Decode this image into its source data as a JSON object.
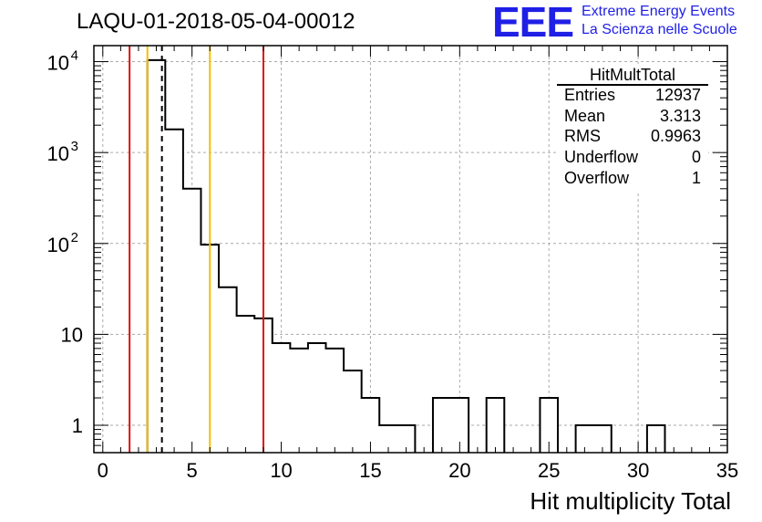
{
  "title": "LAQU-01-2018-05-04-00012",
  "logo": {
    "mark": "EEE",
    "line1": "Extreme Energy Events",
    "line2": "La Scienza nelle Scuole",
    "color": "#1f1fe6"
  },
  "chart_data": {
    "type": "histogram",
    "title": "LAQU-01-2018-05-04-00012",
    "xlabel": "Hit multiplicity Total",
    "ylabel": "",
    "xlim": [
      -0.5,
      35
    ],
    "ylim": [
      0.5,
      15000
    ],
    "yscale": "log",
    "grid": true,
    "x_ticks": [
      "0",
      "5",
      "10",
      "15",
      "20",
      "25",
      "30",
      "35"
    ],
    "y_ticks": [
      {
        "value": 1,
        "base": "1",
        "exp": ""
      },
      {
        "value": 10,
        "base": "10",
        "exp": ""
      },
      {
        "value": 100,
        "base": "10",
        "exp": "2"
      },
      {
        "value": 1000,
        "base": "10",
        "exp": "3"
      },
      {
        "value": 10000,
        "base": "10",
        "exp": "4"
      }
    ],
    "bin_width": 1,
    "bins": [
      {
        "lo": 2.5,
        "hi": 3.5,
        "count": 10400
      },
      {
        "lo": 3.5,
        "hi": 4.5,
        "count": 1800
      },
      {
        "lo": 4.5,
        "hi": 5.5,
        "count": 400
      },
      {
        "lo": 5.5,
        "hi": 6.5,
        "count": 97
      },
      {
        "lo": 6.5,
        "hi": 7.5,
        "count": 33
      },
      {
        "lo": 7.5,
        "hi": 8.5,
        "count": 16
      },
      {
        "lo": 8.5,
        "hi": 9.5,
        "count": 15
      },
      {
        "lo": 9.5,
        "hi": 10.5,
        "count": 8
      },
      {
        "lo": 10.5,
        "hi": 11.5,
        "count": 7
      },
      {
        "lo": 11.5,
        "hi": 12.5,
        "count": 8
      },
      {
        "lo": 12.5,
        "hi": 13.5,
        "count": 7
      },
      {
        "lo": 13.5,
        "hi": 14.5,
        "count": 4
      },
      {
        "lo": 14.5,
        "hi": 15.5,
        "count": 2
      },
      {
        "lo": 15.5,
        "hi": 16.5,
        "count": 1
      },
      {
        "lo": 16.5,
        "hi": 17.5,
        "count": 1
      },
      {
        "lo": 18.5,
        "hi": 19.5,
        "count": 2
      },
      {
        "lo": 19.5,
        "hi": 20.5,
        "count": 2
      },
      {
        "lo": 21.5,
        "hi": 22.5,
        "count": 2
      },
      {
        "lo": 24.5,
        "hi": 25.5,
        "count": 2
      },
      {
        "lo": 26.5,
        "hi": 27.5,
        "count": 1
      },
      {
        "lo": 27.5,
        "hi": 28.5,
        "count": 1
      },
      {
        "lo": 30.5,
        "hi": 31.5,
        "count": 1
      }
    ],
    "vertical_lines": [
      {
        "x": 1.5,
        "color": "#dd1111",
        "style": "solid"
      },
      {
        "x": 2.5,
        "color": "#f2c200",
        "style": "solid"
      },
      {
        "x": 3.313,
        "color": "#000000",
        "style": "dashed"
      },
      {
        "x": 6.0,
        "color": "#f2c200",
        "style": "solid"
      },
      {
        "x": 9.0,
        "color": "#dd1111",
        "style": "solid"
      }
    ],
    "stats": {
      "name": "HitMultTotal",
      "rows": [
        {
          "label": "Entries",
          "value": "12937"
        },
        {
          "label": "Mean",
          "value": "3.313"
        },
        {
          "label": "RMS",
          "value": "0.9963"
        },
        {
          "label": "Underflow",
          "value": "0"
        },
        {
          "label": "Overflow",
          "value": "1"
        }
      ]
    }
  }
}
